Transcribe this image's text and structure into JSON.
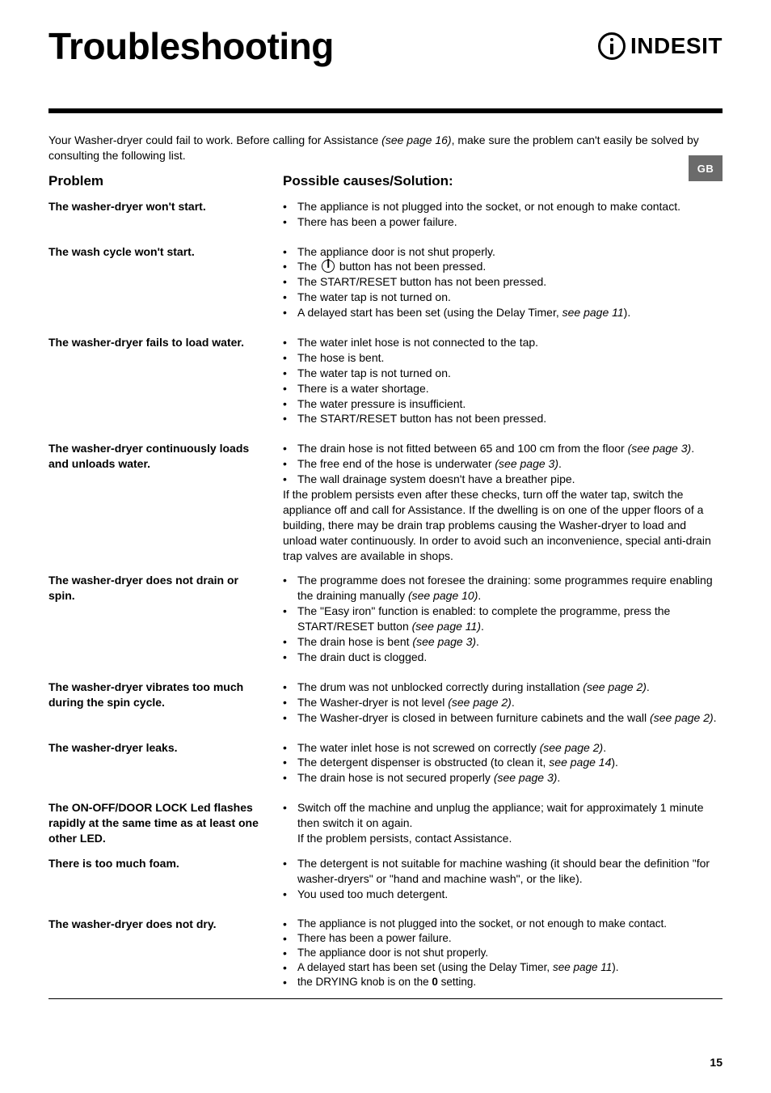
{
  "title": "Troubleshooting",
  "brand": "INDESIT",
  "lang_tab": "GB",
  "page_number": "15",
  "intro_a": "Your Washer-dryer could fail to work. Before calling for Assistance ",
  "intro_ref": "(see page 16)",
  "intro_b": ", make sure the problem can't easily be solved by consulting the following list.",
  "headings": {
    "problem": "Problem",
    "solution": "Possible causes/Solution:"
  },
  "rows": [
    {
      "problem": "The washer-dryer won't start.",
      "bullets": [
        "The appliance is not plugged into the socket, or not enough to make contact.",
        "There has been a power failure."
      ]
    },
    {
      "problem": "The wash cycle won't start.",
      "bullets_special": "wash_cycle"
    },
    {
      "problem": "The washer-dryer fails to load water.",
      "bullets": [
        "The water inlet hose is not connected to the tap.",
        "The hose is bent.",
        "The water tap is not turned on.",
        "There is a water shortage.",
        "The water pressure is insufficient.",
        "The START/RESET button has not been pressed."
      ]
    },
    {
      "problem": "The washer-dryer continuously loads and unloads water.",
      "bullets_special": "continuously"
    },
    {
      "problem": "The washer-dryer does not drain or spin.",
      "bullets_special": "drain_spin"
    },
    {
      "problem": "The washer-dryer vibrates too much during the spin cycle.",
      "bullets_special": "vibrates"
    },
    {
      "problem": "The washer-dryer leaks.",
      "bullets_special": "leaks"
    },
    {
      "problem": "The ON-OFF/DOOR LOCK Led flashes rapidly at the same time as at least one other LED.",
      "bullets_special": "ledflash"
    },
    {
      "problem": "There is too much foam.",
      "bullets": [
        "The detergent is not suitable for machine washing (it should bear the definition \"for washer-dryers\" or \"hand and machine wash\", or the like).",
        "You used too much detergent."
      ]
    },
    {
      "problem": "The washer-dryer does not dry.",
      "bullets_special": "notdry"
    }
  ],
  "special": {
    "wash_cycle": {
      "b1": "The appliance door is not shut properly.",
      "b2a": "The ",
      "b2b": " button has not been pressed.",
      "b3": "The START/RESET button has not been pressed.",
      "b4": "The water tap is not turned on.",
      "b5a": "A delayed start has been set (using the Delay Timer, ",
      "b5ref": "see page 11",
      "b5b": ")."
    },
    "continuously": {
      "b1a": "The drain hose is not fitted between 65 and 100 cm from the floor ",
      "b1ref": "(see page 3)",
      "b1b": ".",
      "b2a": "The free end of the hose is underwater ",
      "b2ref": "(see page 3)",
      "b2b": ".",
      "b3": "The wall drainage system doesn't have a breather pipe.",
      "note": "If the problem persists even after these checks, turn off the water tap, switch the appliance off and call for Assistance. If the dwelling is on one of the upper floors of a building, there may be drain trap problems causing the Washer-dryer to load and unload water continuously. In order to avoid such an inconvenience, special anti-drain trap valves are available in shops."
    },
    "drain_spin": {
      "b1a": "The programme does not foresee the draining: some programmes require enabling the draining manually ",
      "b1ref": "(see page 10)",
      "b1b": ".",
      "b2a": "The \"Easy iron\" function is enabled: to complete the programme, press the START/RESET button ",
      "b2ref": "(see page 11)",
      "b2b": ".",
      "b3a": "The drain hose is bent ",
      "b3ref": "(see page 3)",
      "b3b": ".",
      "b4": "The drain duct is clogged."
    },
    "vibrates": {
      "b1a": "The drum was not unblocked correctly during installation ",
      "b1ref": "(see page 2)",
      "b1b": ".",
      "b2a": "The Washer-dryer is not level ",
      "b2ref": "(see page 2)",
      "b2b": ".",
      "b3a": "The Washer-dryer is closed in between furniture cabinets and the wall ",
      "b3ref": "(see page 2)",
      "b3b": "."
    },
    "leaks": {
      "b1a": "The water inlet hose is not screwed on correctly ",
      "b1ref": "(see page 2)",
      "b1b": ".",
      "b2a": "The detergent dispenser is obstructed (to clean it, ",
      "b2ref": "see page 14",
      "b2b": ").",
      "b3a": "The drain hose is not secured properly ",
      "b3ref": "(see page 3)",
      "b3b": "."
    },
    "ledflash": {
      "b1": "Switch off the machine and unplug the appliance; wait for approximately 1 minute then switch it on again.",
      "note": "If the problem persists, contact Assistance."
    },
    "notdry": {
      "b1": "The appliance is not plugged into the socket, or not enough to make contact.",
      "b2": "There has been a power failure.",
      "b3": "The appliance door is not shut properly.",
      "b4a": "A delayed start has been set (using the Delay Timer, ",
      "b4ref": "see page 11",
      "b4b": ").",
      "b5a": "the DRYING knob is on the ",
      "b5bold": "0",
      "b5b": " setting."
    }
  }
}
